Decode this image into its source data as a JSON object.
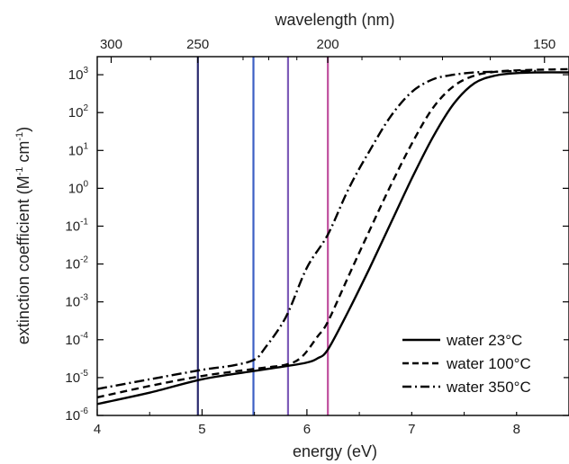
{
  "chart_data": {
    "type": "line",
    "xlabel": "energy (eV)",
    "ylabel": "extinction coefficient (M",
    "ylabel_sup1": "-1",
    "ylabel_mid": " cm",
    "ylabel_sup2": "-1",
    "ylabel_end": ")",
    "top_axis_label": "wavelength (nm)",
    "x_scale": "linear",
    "y_scale": "log",
    "xlim": [
      4,
      8.5
    ],
    "ylim": [
      1e-06,
      3000
    ],
    "x_ticks": [
      4,
      5,
      6,
      7,
      8
    ],
    "x_tick_labels": [
      "4",
      "5",
      "6",
      "7",
      "8"
    ],
    "y_ticks": [
      1e-06,
      1e-05,
      0.0001,
      0.001,
      0.01,
      0.1,
      1,
      10,
      100,
      1000
    ],
    "y_tick_base": [
      "10",
      "10",
      "10",
      "10",
      "10",
      "10",
      "10",
      "10",
      "10",
      "10"
    ],
    "y_tick_exp": [
      "-6",
      "-5",
      "-4",
      "-3",
      "-2",
      "-1",
      "0",
      "1",
      "2",
      "3"
    ],
    "top_ticks": [
      {
        "label": "300",
        "energy": 4.133
      },
      {
        "label": "250",
        "energy": 4.959
      },
      {
        "label": "200",
        "energy": 6.199
      },
      {
        "label": "150",
        "energy": 8.266
      }
    ],
    "top_minor_ticks_energy": [
      4.509,
      5.391,
      5.636,
      5.904,
      6.525,
      6.888,
      7.293,
      7.749
    ],
    "vertical_lines": [
      {
        "energy": 4.96,
        "color": "#2a2a6e"
      },
      {
        "energy": 5.49,
        "color": "#3d5fc4"
      },
      {
        "energy": 5.82,
        "color": "#7d5bb8"
      },
      {
        "energy": 6.2,
        "color": "#c0509e"
      }
    ],
    "series": [
      {
        "name": "water 23°C",
        "dash": "solid",
        "x": [
          4.0,
          4.5,
          5.0,
          5.5,
          5.8,
          6.0,
          6.1,
          6.2,
          6.4,
          6.6,
          6.8,
          7.0,
          7.2,
          7.4,
          7.6,
          7.8,
          8.0,
          8.2,
          8.5
        ],
        "y": [
          2e-06,
          4e-06,
          9e-06,
          1.5e-05,
          2e-05,
          2.5e-05,
          3.2e-05,
          5.5e-05,
          0.0006,
          0.008,
          0.12,
          1.8,
          22,
          170,
          600,
          950,
          1100,
          1150,
          1150
        ]
      },
      {
        "name": "water 100°C",
        "dash": "dashed",
        "x": [
          4.0,
          4.5,
          5.0,
          5.5,
          5.8,
          5.95,
          6.1,
          6.2,
          6.4,
          6.6,
          6.8,
          7.0,
          7.2,
          7.4,
          7.6,
          7.8,
          8.0,
          8.2,
          8.5
        ],
        "y": [
          3e-06,
          6e-06,
          1.1e-05,
          1.7e-05,
          2.2e-05,
          3.5e-05,
          0.00012,
          0.0003,
          0.005,
          0.08,
          1.2,
          15,
          130,
          500,
          950,
          1200,
          1300,
          1350,
          1400
        ]
      },
      {
        "name": "water 350°C",
        "dash": "dashdot",
        "x": [
          4.0,
          4.5,
          5.0,
          5.3,
          5.5,
          5.6,
          5.8,
          6.0,
          6.2,
          6.4,
          6.6,
          6.8,
          7.0,
          7.2,
          7.4,
          7.6,
          7.8,
          8.0,
          8.2
        ],
        "y": [
          5e-06,
          9e-06,
          1.6e-05,
          2.1e-05,
          3e-05,
          6e-05,
          0.0004,
          0.008,
          0.06,
          1.0,
          10,
          80,
          350,
          750,
          1000,
          1150,
          1200,
          1250,
          1250
        ]
      }
    ],
    "legend": {
      "placement": "bottom-right",
      "items": [
        "water 23°C",
        "water 100°C",
        "water 350°C"
      ]
    }
  }
}
